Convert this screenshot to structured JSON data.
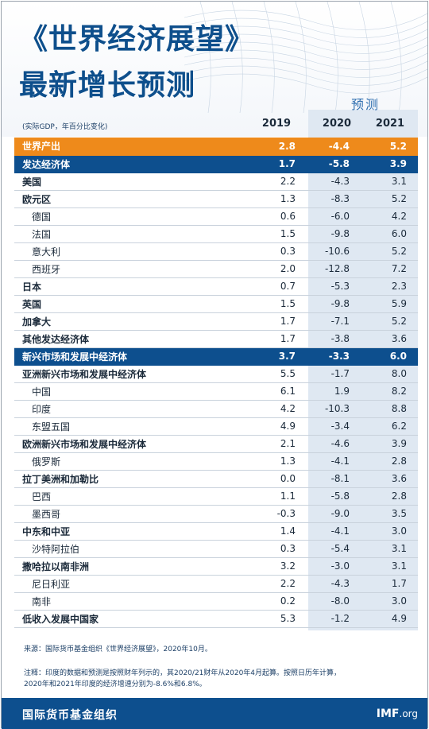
{
  "title_line1": "《世界经济展望》",
  "title_line2": "最新增长预测",
  "forecast_label": "预测",
  "unit_note": "(实际GDP，年百分比变化)",
  "years": [
    "2019",
    "2020",
    "2021"
  ],
  "rows": [
    {
      "name": "世界产出",
      "v2019": "2.8",
      "v2020": "-4.4",
      "v2021": "5.2",
      "style": "hl-orange"
    },
    {
      "name": "发达经济体",
      "v2019": "1.7",
      "v2020": "-5.8",
      "v2021": "3.9",
      "style": "hl-blue"
    },
    {
      "name": "美国",
      "v2019": "2.2",
      "v2020": "-4.3",
      "v2021": "3.1",
      "style": "bold"
    },
    {
      "name": "欧元区",
      "v2019": "1.3",
      "v2020": "-8.3",
      "v2021": "5.2",
      "style": "bold"
    },
    {
      "name": "德国",
      "v2019": "0.6",
      "v2020": "-6.0",
      "v2021": "4.2",
      "style": "indent"
    },
    {
      "name": "法国",
      "v2019": "1.5",
      "v2020": "-9.8",
      "v2021": "6.0",
      "style": "indent"
    },
    {
      "name": "意大利",
      "v2019": "0.3",
      "v2020": "-10.6",
      "v2021": "5.2",
      "style": "indent"
    },
    {
      "name": "西班牙",
      "v2019": "2.0",
      "v2020": "-12.8",
      "v2021": "7.2",
      "style": "indent"
    },
    {
      "name": "日本",
      "v2019": "0.7",
      "v2020": "-5.3",
      "v2021": "2.3",
      "style": "bold"
    },
    {
      "name": "英国",
      "v2019": "1.5",
      "v2020": "-9.8",
      "v2021": "5.9",
      "style": "bold"
    },
    {
      "name": "加拿大",
      "v2019": "1.7",
      "v2020": "-7.1",
      "v2021": "5.2",
      "style": "bold"
    },
    {
      "name": "其他发达经济体",
      "v2019": "1.7",
      "v2020": "-3.8",
      "v2021": "3.6",
      "style": "bold"
    },
    {
      "name": "新兴市场和发展中经济体",
      "v2019": "3.7",
      "v2020": "-3.3",
      "v2021": "6.0",
      "style": "hl-blue"
    },
    {
      "name": "亚洲新兴市场和发展中经济体",
      "v2019": "5.5",
      "v2020": "-1.7",
      "v2021": "8.0",
      "style": "bold"
    },
    {
      "name": "中国",
      "v2019": "6.1",
      "v2020": "1.9",
      "v2021": "8.2",
      "style": "indent"
    },
    {
      "name": "印度",
      "v2019": "4.2",
      "v2020": "-10.3",
      "v2021": "8.8",
      "style": "indent"
    },
    {
      "name": "东盟五国",
      "v2019": "4.9",
      "v2020": "-3.4",
      "v2021": "6.2",
      "style": "indent"
    },
    {
      "name": "欧洲新兴市场和发展中经济体",
      "v2019": "2.1",
      "v2020": "-4.6",
      "v2021": "3.9",
      "style": "bold"
    },
    {
      "name": "俄罗斯",
      "v2019": "1.3",
      "v2020": "-4.1",
      "v2021": "2.8",
      "style": "indent"
    },
    {
      "name": "拉丁美洲和加勒比",
      "v2019": "0.0",
      "v2020": "-8.1",
      "v2021": "3.6",
      "style": "bold"
    },
    {
      "name": "巴西",
      "v2019": "1.1",
      "v2020": "-5.8",
      "v2021": "2.8",
      "style": "indent"
    },
    {
      "name": "墨西哥",
      "v2019": "-0.3",
      "v2020": "-9.0",
      "v2021": "3.5",
      "style": "indent"
    },
    {
      "name": "中东和中亚",
      "v2019": "1.4",
      "v2020": "-4.1",
      "v2021": "3.0",
      "style": "bold"
    },
    {
      "name": "沙特阿拉伯",
      "v2019": "0.3",
      "v2020": "-5.4",
      "v2021": "3.1",
      "style": "indent"
    },
    {
      "name": "撒哈拉以南非洲",
      "v2019": "3.2",
      "v2020": "-3.0",
      "v2021": "3.1",
      "style": "bold"
    },
    {
      "name": "尼日利亚",
      "v2019": "2.2",
      "v2020": "-4.3",
      "v2021": "1.7",
      "style": "indent"
    },
    {
      "name": "南非",
      "v2019": "0.2",
      "v2020": "-8.0",
      "v2021": "3.0",
      "style": "indent"
    },
    {
      "name": "低收入发展中国家",
      "v2019": "5.3",
      "v2020": "-1.2",
      "v2021": "4.9",
      "style": "bold"
    }
  ],
  "source_note": "来源：国际货币基金组织《世界经济展望》，2020年10月。",
  "note_line1": "注释：印度的数据和预测是按照财年列示的，其2020/21财年从2020年4月起算。按照日历年计算，",
  "note_line2": "2020年和2021年印度的经济增速分别为-8.6%和6.8%。",
  "footer": {
    "org_name": "国际货币基金组织",
    "brand": "IMF",
    "brand_suffix": ".org"
  },
  "colors": {
    "title_blue": "#0e4f8c",
    "highlight_orange": "#ee8a1b",
    "highlight_blue": "#0d4f8e",
    "forecast_bg": "#dfe8f2"
  }
}
